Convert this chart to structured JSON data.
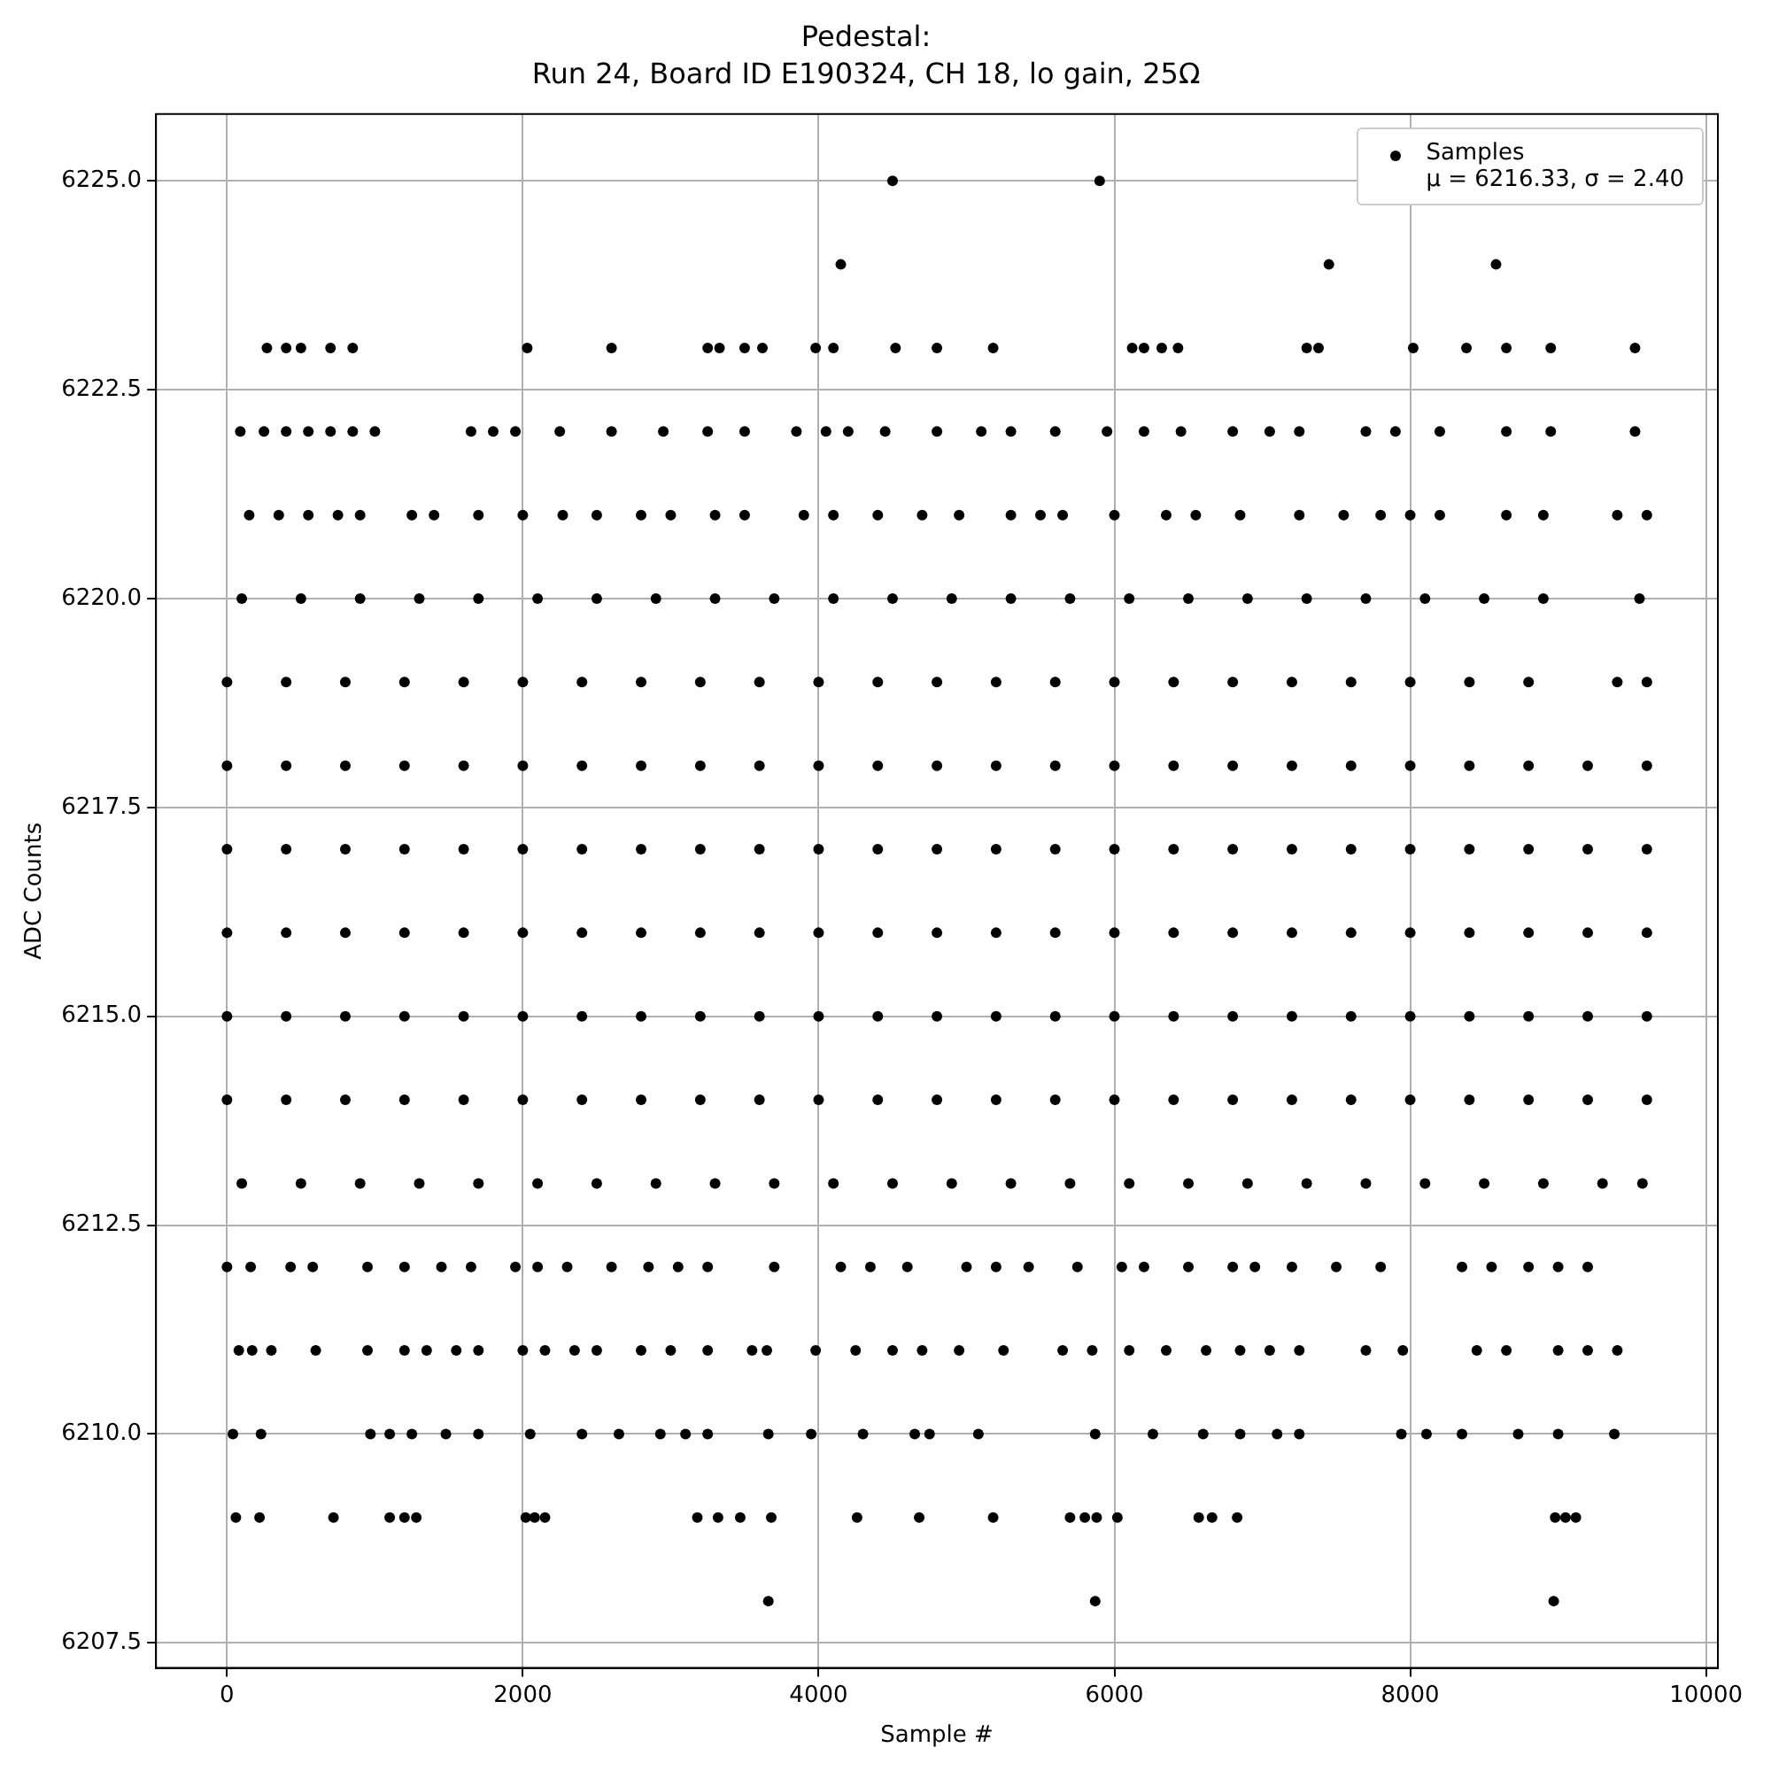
{
  "chart_data": {
    "type": "scatter",
    "title": "Pedestal:",
    "subtitle": "Run 24, Board ID E190324, CH 18, lo gain, 25Ω",
    "xlabel": "Sample #",
    "ylabel": "ADC Counts",
    "xlim": [
      -480,
      10080
    ],
    "xticks": [
      0,
      2000,
      4000,
      6000,
      8000,
      10000
    ],
    "ylim": [
      6207.2,
      6225.8
    ],
    "yticks": [
      6207.5,
      {
        "value": 6210,
        "label": "6210.0"
      },
      6212.5,
      {
        "value": 6215,
        "label": "6215.0"
      },
      6217.5,
      {
        "value": 6220,
        "label": "6220.0"
      },
      6222.5,
      {
        "value": 6225,
        "label": "6225.0"
      }
    ],
    "grid": true,
    "legend": "top right",
    "marker": "circle",
    "series": [
      {
        "name": "Samples\nμ = 6216.33, σ = 2.40",
        "color": "#000000",
        "x": [
          4500,
          5900,
          4150,
          7450,
          8580,
          270,
          400,
          500,
          700,
          850,
          2030,
          2600,
          3250,
          3330,
          3500,
          3620,
          3980,
          4100,
          4520,
          4800,
          5180,
          6120,
          6200,
          6320,
          6430,
          7300,
          7380,
          8020,
          8380,
          8650,
          8950,
          9520,
          90,
          250,
          400,
          550,
          700,
          850,
          1000,
          1650,
          1800,
          1950,
          2250,
          2600,
          2950,
          3250,
          3500,
          3850,
          4050,
          4200,
          4450,
          4800,
          5100,
          5300,
          5600,
          5950,
          6200,
          6450,
          6800,
          7050,
          7250,
          7700,
          7900,
          8200,
          8650,
          8950,
          9520,
          150,
          350,
          550,
          750,
          900,
          1250,
          1400,
          1700,
          2000,
          2270,
          2500,
          2800,
          3000,
          3300,
          3500,
          3900,
          4100,
          4400,
          4700,
          4950,
          5300,
          5500,
          5650,
          6000,
          6350,
          6550,
          6850,
          7250,
          7550,
          7800,
          8000,
          8200,
          8650,
          8900,
          9400,
          9600,
          100,
          500,
          900,
          1300,
          1700,
          2100,
          2500,
          2900,
          3300,
          3700,
          4100,
          4500,
          4900,
          5300,
          5700,
          6100,
          6500,
          6900,
          7300,
          7700,
          8100,
          8500,
          8900,
          9550,
          0,
          400,
          800,
          1200,
          1600,
          2000,
          2400,
          2800,
          3200,
          3600,
          4000,
          4400,
          4800,
          5200,
          5600,
          6000,
          6400,
          6800,
          7200,
          7600,
          8000,
          8400,
          8800,
          9400,
          9600,
          0,
          400,
          800,
          1200,
          1600,
          2000,
          2400,
          2800,
          3200,
          3600,
          4000,
          4400,
          4800,
          5200,
          5600,
          6000,
          6400,
          6800,
          7200,
          7600,
          8000,
          8400,
          8800,
          9200,
          9600,
          0,
          400,
          800,
          1200,
          1600,
          2000,
          2400,
          2800,
          3200,
          3600,
          4000,
          4400,
          4800,
          5200,
          5600,
          6000,
          6400,
          6800,
          7200,
          7600,
          8000,
          8400,
          8800,
          9200,
          9600,
          0,
          400,
          800,
          1200,
          1600,
          2000,
          2400,
          2800,
          3200,
          3600,
          4000,
          4400,
          4800,
          5200,
          5600,
          6000,
          6400,
          6800,
          7200,
          7600,
          8000,
          8400,
          8800,
          9200,
          9600,
          0,
          400,
          800,
          1200,
          1600,
          2000,
          2400,
          2800,
          3200,
          3600,
          4000,
          4400,
          4800,
          5200,
          5600,
          6000,
          6400,
          6800,
          7200,
          7600,
          8000,
          8400,
          8800,
          9200,
          9600,
          0,
          400,
          800,
          1200,
          1600,
          2000,
          2400,
          2800,
          3200,
          3600,
          4000,
          4400,
          4800,
          5200,
          5600,
          6000,
          6400,
          6800,
          7200,
          7600,
          8000,
          8400,
          8800,
          9200,
          9600,
          100,
          500,
          900,
          1300,
          1700,
          2100,
          2500,
          2900,
          3300,
          3700,
          4100,
          4500,
          4900,
          5300,
          5700,
          6100,
          6500,
          6900,
          7300,
          7700,
          8100,
          8500,
          8900,
          9300,
          9570,
          0,
          160,
          430,
          580,
          950,
          1200,
          1450,
          1650,
          1950,
          2100,
          2300,
          2600,
          2850,
          3050,
          3250,
          3700,
          4150,
          4350,
          4600,
          5000,
          5200,
          5420,
          5750,
          6050,
          6200,
          6500,
          6800,
          6950,
          7200,
          7500,
          7800,
          8350,
          8550,
          8800,
          9000,
          9200,
          80,
          170,
          300,
          600,
          950,
          1200,
          1350,
          1550,
          1700,
          2000,
          2150,
          2350,
          2500,
          2800,
          3000,
          3250,
          3550,
          3650,
          3980,
          4250,
          4500,
          4700,
          4950,
          5250,
          5650,
          5850,
          6100,
          6350,
          6620,
          6850,
          7050,
          7250,
          7700,
          7950,
          8450,
          8650,
          9000,
          9200,
          9400,
          40,
          230,
          970,
          1100,
          1250,
          1480,
          1700,
          2050,
          2400,
          2650,
          2930,
          3100,
          3250,
          3660,
          3950,
          4300,
          4650,
          4750,
          5080,
          5870,
          6260,
          6600,
          6850,
          7100,
          7250,
          7940,
          8110,
          8350,
          8730,
          9000,
          9380,
          60,
          220,
          720,
          1100,
          1200,
          1280,
          2020,
          2080,
          2150,
          3180,
          3320,
          3470,
          3680,
          4260,
          4680,
          5180,
          5700,
          5800,
          5880,
          6020,
          6570,
          6660,
          6830,
          8980,
          9050,
          9120,
          3660,
          5870,
          8970
        ],
        "values": [
          6225,
          6225,
          6224,
          6224,
          6224,
          6223,
          6223,
          6223,
          6223,
          6223,
          6223,
          6223,
          6223,
          6223,
          6223,
          6223,
          6223,
          6223,
          6223,
          6223,
          6223,
          6223,
          6223,
          6223,
          6223,
          6223,
          6223,
          6223,
          6223,
          6223,
          6223,
          6223,
          6222,
          6222,
          6222,
          6222,
          6222,
          6222,
          6222,
          6222,
          6222,
          6222,
          6222,
          6222,
          6222,
          6222,
          6222,
          6222,
          6222,
          6222,
          6222,
          6222,
          6222,
          6222,
          6222,
          6222,
          6222,
          6222,
          6222,
          6222,
          6222,
          6222,
          6222,
          6222,
          6222,
          6222,
          6222,
          6221,
          6221,
          6221,
          6221,
          6221,
          6221,
          6221,
          6221,
          6221,
          6221,
          6221,
          6221,
          6221,
          6221,
          6221,
          6221,
          6221,
          6221,
          6221,
          6221,
          6221,
          6221,
          6221,
          6221,
          6221,
          6221,
          6221,
          6221,
          6221,
          6221,
          6221,
          6221,
          6221,
          6221,
          6221,
          6221,
          6220,
          6220,
          6220,
          6220,
          6220,
          6220,
          6220,
          6220,
          6220,
          6220,
          6220,
          6220,
          6220,
          6220,
          6220,
          6220,
          6220,
          6220,
          6220,
          6220,
          6220,
          6220,
          6220,
          6220,
          6219,
          6219,
          6219,
          6219,
          6219,
          6219,
          6219,
          6219,
          6219,
          6219,
          6219,
          6219,
          6219,
          6219,
          6219,
          6219,
          6219,
          6219,
          6219,
          6219,
          6219,
          6219,
          6219,
          6219,
          6219,
          6218,
          6218,
          6218,
          6218,
          6218,
          6218,
          6218,
          6218,
          6218,
          6218,
          6218,
          6218,
          6218,
          6218,
          6218,
          6218,
          6218,
          6218,
          6218,
          6218,
          6218,
          6218,
          6218,
          6218,
          6218,
          6217,
          6217,
          6217,
          6217,
          6217,
          6217,
          6217,
          6217,
          6217,
          6217,
          6217,
          6217,
          6217,
          6217,
          6217,
          6217,
          6217,
          6217,
          6217,
          6217,
          6217,
          6217,
          6217,
          6217,
          6217,
          6216,
          6216,
          6216,
          6216,
          6216,
          6216,
          6216,
          6216,
          6216,
          6216,
          6216,
          6216,
          6216,
          6216,
          6216,
          6216,
          6216,
          6216,
          6216,
          6216,
          6216,
          6216,
          6216,
          6216,
          6216,
          6215,
          6215,
          6215,
          6215,
          6215,
          6215,
          6215,
          6215,
          6215,
          6215,
          6215,
          6215,
          6215,
          6215,
          6215,
          6215,
          6215,
          6215,
          6215,
          6215,
          6215,
          6215,
          6215,
          6215,
          6215,
          6214,
          6214,
          6214,
          6214,
          6214,
          6214,
          6214,
          6214,
          6214,
          6214,
          6214,
          6214,
          6214,
          6214,
          6214,
          6214,
          6214,
          6214,
          6214,
          6214,
          6214,
          6214,
          6214,
          6214,
          6214,
          6213,
          6213,
          6213,
          6213,
          6213,
          6213,
          6213,
          6213,
          6213,
          6213,
          6213,
          6213,
          6213,
          6213,
          6213,
          6213,
          6213,
          6213,
          6213,
          6213,
          6213,
          6213,
          6213,
          6213,
          6213,
          6212,
          6212,
          6212,
          6212,
          6212,
          6212,
          6212,
          6212,
          6212,
          6212,
          6212,
          6212,
          6212,
          6212,
          6212,
          6212,
          6212,
          6212,
          6212,
          6212,
          6212,
          6212,
          6212,
          6212,
          6212,
          6212,
          6212,
          6212,
          6212,
          6212,
          6212,
          6212,
          6212,
          6212,
          6212,
          6212,
          6211,
          6211,
          6211,
          6211,
          6211,
          6211,
          6211,
          6211,
          6211,
          6211,
          6211,
          6211,
          6211,
          6211,
          6211,
          6211,
          6211,
          6211,
          6211,
          6211,
          6211,
          6211,
          6211,
          6211,
          6211,
          6211,
          6211,
          6211,
          6211,
          6211,
          6211,
          6211,
          6211,
          6211,
          6211,
          6211,
          6211,
          6211,
          6211,
          6210,
          6210,
          6210,
          6210,
          6210,
          6210,
          6210,
          6210,
          6210,
          6210,
          6210,
          6210,
          6210,
          6210,
          6210,
          6210,
          6210,
          6210,
          6210,
          6210,
          6210,
          6210,
          6210,
          6210,
          6210,
          6210,
          6210,
          6210,
          6210,
          6210,
          6210,
          6209,
          6209,
          6209,
          6209,
          6209,
          6209,
          6209,
          6209,
          6209,
          6209,
          6209,
          6209,
          6209,
          6209,
          6209,
          6209,
          6209,
          6209,
          6209,
          6209,
          6209,
          6209,
          6209,
          6209,
          6209,
          6209,
          6208,
          6208,
          6208
        ]
      }
    ]
  }
}
